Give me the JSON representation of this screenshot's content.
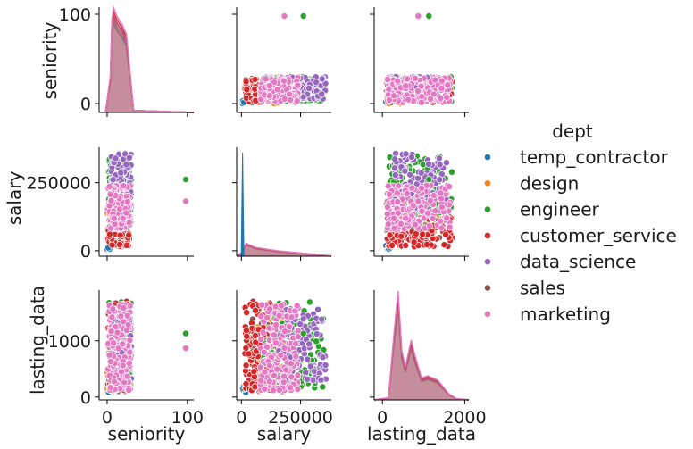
{
  "chart_data": {
    "type": "scatter",
    "subtype": "pairplot",
    "variables": [
      "seniority",
      "salary",
      "lasting_data"
    ],
    "ranges": {
      "seniority": [
        -10,
        108
      ],
      "salary": [
        -20000,
        380000
      ],
      "lasting_data": [
        -50,
        1900
      ],
      "lasting_data_x": [
        -200,
        2100
      ]
    },
    "ticks": {
      "seniority": [
        0,
        100
      ],
      "salary": [
        0,
        250000
      ],
      "lasting_data": [
        0,
        1000
      ],
      "lasting_data_x": [
        0,
        2000
      ]
    },
    "tick_labels": {
      "seniority": [
        "0",
        "100"
      ],
      "salary": [
        "0",
        "250000"
      ],
      "lasting_data": [
        "0",
        "1000"
      ],
      "lasting_data_x": [
        "0",
        "2000"
      ]
    },
    "legend": {
      "title": "dept",
      "placement": "right",
      "entries": [
        "temp_contractor",
        "design",
        "engineer",
        "customer_service",
        "data_science",
        "sales",
        "marketing"
      ]
    },
    "series": [
      {
        "name": "temp_contractor",
        "color": "#1f77b4"
      },
      {
        "name": "design",
        "color": "#ff7f0e"
      },
      {
        "name": "engineer",
        "color": "#2ca02c"
      },
      {
        "name": "customer_service",
        "color": "#d62728"
      },
      {
        "name": "data_science",
        "color": "#9467bd"
      },
      {
        "name": "sales",
        "color": "#8c564b"
      },
      {
        "name": "marketing",
        "color": "#e377c2"
      }
    ],
    "outliers": [
      {
        "series": "engineer",
        "seniority": 98,
        "salary": 262000,
        "lasting_data": 1130
      },
      {
        "series": "marketing",
        "seniority": 98,
        "salary": 182000,
        "lasting_data": 870
      }
    ],
    "grid": false
  }
}
